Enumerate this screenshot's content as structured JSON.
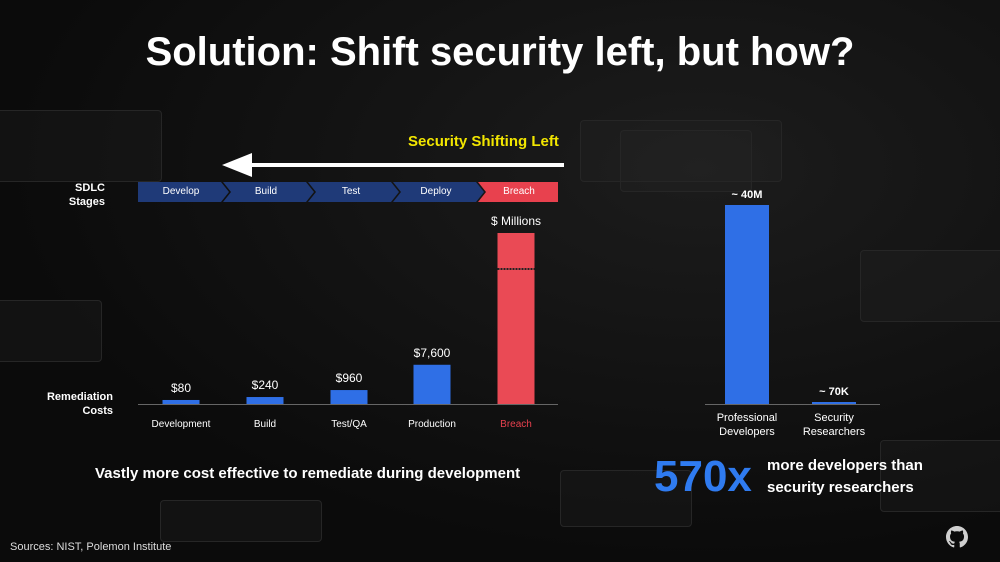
{
  "title": "Solution: Shift security left, but how?",
  "shift_label": "Security Shifting Left",
  "sdlc_label": [
    "SDLC",
    "Stages"
  ],
  "remediation_label": [
    "Remediation",
    "Costs"
  ],
  "stages": [
    "Develop",
    "Build",
    "Test",
    "Deploy",
    "Breach"
  ],
  "colors": {
    "stage": "#1f3a78",
    "stage_breach": "#e8414e",
    "bar_blue": "#2f6fe6",
    "bar_red": "#ea4a55",
    "arrow": "#ffffff",
    "shift_label": "#f2e600"
  },
  "chart_data": [
    {
      "type": "bar",
      "categories": [
        "Development",
        "Build",
        "Test/QA",
        "Production",
        "Breach"
      ],
      "values": [
        80,
        240,
        960,
        7600,
        null
      ],
      "data_labels": [
        "$80",
        "$240",
        "$960",
        "$7,600",
        "$ Millions"
      ],
      "highlight_category": "Breach",
      "axis_break": true
    },
    {
      "type": "bar",
      "categories": [
        "Professional Developers",
        "Security Researchers"
      ],
      "values": [
        40000000,
        70000
      ],
      "data_labels": [
        "~ 40M",
        "~ 70K"
      ]
    }
  ],
  "bottom_left": "Vastly more cost effective to remediate during development",
  "ratio": {
    "value": "570x",
    "text_line1": "more developers than",
    "text_line2": "security researchers"
  },
  "sources": "Sources: NIST, Polemon Institute",
  "icon": "github-icon"
}
